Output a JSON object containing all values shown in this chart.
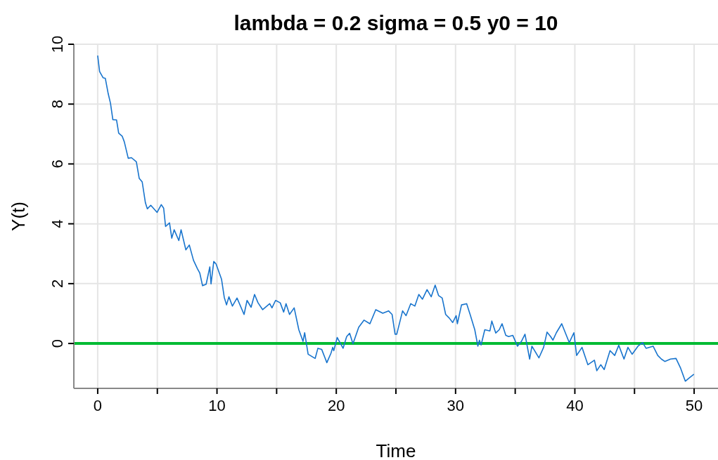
{
  "chart_data": {
    "type": "line",
    "title": "lambda = 0.2 sigma = 0.5 y0 = 10",
    "xlabel": "Time",
    "ylabel": "Y(t)",
    "xlim": [
      -2,
      52
    ],
    "ylim": [
      -1.5,
      10
    ],
    "xticks": [
      0,
      {
        "value": 5,
        "label": null
      },
      10,
      {
        "value": 15,
        "label": null
      },
      20,
      {
        "value": 25,
        "label": null
      },
      30,
      {
        "value": 35,
        "label": null
      },
      40,
      {
        "value": 45,
        "label": null
      },
      50
    ],
    "yticks": [
      0,
      2,
      4,
      6,
      8,
      10
    ],
    "grid": true,
    "ref_lines": [
      {
        "axis": "y",
        "value": 0,
        "color": "#00bb33"
      }
    ],
    "series": [
      {
        "color": "#1874cd",
        "x": [
          0,
          0.16,
          0.45,
          0.64,
          0.88,
          1.07,
          1.27,
          1.58,
          1.76,
          2.05,
          2.23,
          2.56,
          2.83,
          3.24,
          3.48,
          3.73,
          4.0,
          4.16,
          4.45,
          4.98,
          5.33,
          5.53,
          5.69,
          6.02,
          6.21,
          6.41,
          6.8,
          6.99,
          7.39,
          7.68,
          8.03,
          8.36,
          8.56,
          8.79,
          9.09,
          9.4,
          9.5,
          9.73,
          9.92,
          10.38,
          10.61,
          10.8,
          11.0,
          11.29,
          11.68,
          12.27,
          12.52,
          12.86,
          13.15,
          13.44,
          13.83,
          14.42,
          14.61,
          14.91,
          15.3,
          15.59,
          15.79,
          16.08,
          16.47,
          16.86,
          17.21,
          17.35,
          17.64,
          18.23,
          18.46,
          18.78,
          19.21,
          19.56,
          19.7,
          19.79,
          20.08,
          20.57,
          20.87,
          21.12,
          21.4,
          21.88,
          22.33,
          22.82,
          23.31,
          23.9,
          24.38,
          24.68,
          24.93,
          25.07,
          25.56,
          25.85,
          26.24,
          26.59,
          26.92,
          27.22,
          27.61,
          27.96,
          28.29,
          28.58,
          28.88,
          29.17,
          29.47,
          29.76,
          30.05,
          30.15,
          30.5,
          30.93,
          31.22,
          31.61,
          31.87,
          32.0,
          32.14,
          32.45,
          32.88,
          33.04,
          33.37,
          33.66,
          33.9,
          34.21,
          34.45,
          34.8,
          35.19,
          35.52,
          35.82,
          36.21,
          36.4,
          36.99,
          37.38,
          37.67,
          37.97,
          38.16,
          38.45,
          38.9,
          39.33,
          39.53,
          39.92,
          40.15,
          40.6,
          41.09,
          41.64,
          41.84,
          42.17,
          42.46,
          42.95,
          43.34,
          43.68,
          44.12,
          44.45,
          44.8,
          45.29,
          45.68,
          45.97,
          46.56,
          46.95,
          47.25,
          47.54,
          48.02,
          48.48,
          48.87,
          49.26,
          49.59,
          49.98
        ],
        "values": [
          9.62,
          9.09,
          8.88,
          8.86,
          8.35,
          8.03,
          7.48,
          7.47,
          7.03,
          6.93,
          6.74,
          6.19,
          6.21,
          6.07,
          5.52,
          5.4,
          4.7,
          4.5,
          4.62,
          4.38,
          4.64,
          4.52,
          3.91,
          4.03,
          3.52,
          3.8,
          3.44,
          3.8,
          3.13,
          3.29,
          2.78,
          2.5,
          2.35,
          1.93,
          1.98,
          2.56,
          1.99,
          2.74,
          2.66,
          2.15,
          1.54,
          1.29,
          1.56,
          1.25,
          1.52,
          0.97,
          1.44,
          1.21,
          1.64,
          1.36,
          1.13,
          1.33,
          1.19,
          1.44,
          1.36,
          1.05,
          1.33,
          0.97,
          1.19,
          0.46,
          0.07,
          0.36,
          -0.36,
          -0.5,
          -0.16,
          -0.2,
          -0.64,
          -0.32,
          -0.13,
          -0.24,
          0.2,
          -0.16,
          0.23,
          0.34,
          -0.01,
          0.54,
          0.78,
          0.66,
          1.13,
          1.01,
          1.09,
          0.97,
          0.31,
          0.31,
          1.09,
          0.93,
          1.33,
          1.25,
          1.64,
          1.48,
          1.8,
          1.56,
          1.95,
          1.6,
          1.52,
          0.97,
          0.85,
          0.7,
          0.93,
          0.66,
          1.29,
          1.33,
          0.97,
          0.46,
          -0.09,
          0.11,
          -0.05,
          0.46,
          0.42,
          0.75,
          0.35,
          0.46,
          0.66,
          0.27,
          0.23,
          0.27,
          -0.09,
          0.07,
          0.31,
          -0.52,
          -0.09,
          -0.48,
          -0.13,
          0.38,
          0.23,
          0.11,
          0.36,
          0.66,
          0.23,
          0.03,
          0.36,
          -0.4,
          -0.13,
          -0.71,
          -0.56,
          -0.91,
          -0.71,
          -0.87,
          -0.24,
          -0.4,
          -0.06,
          -0.52,
          -0.13,
          -0.36,
          -0.09,
          0.03,
          -0.16,
          -0.09,
          -0.4,
          -0.52,
          -0.6,
          -0.52,
          -0.5,
          -0.83,
          -1.26,
          -1.15,
          -1.03
        ]
      }
    ]
  }
}
